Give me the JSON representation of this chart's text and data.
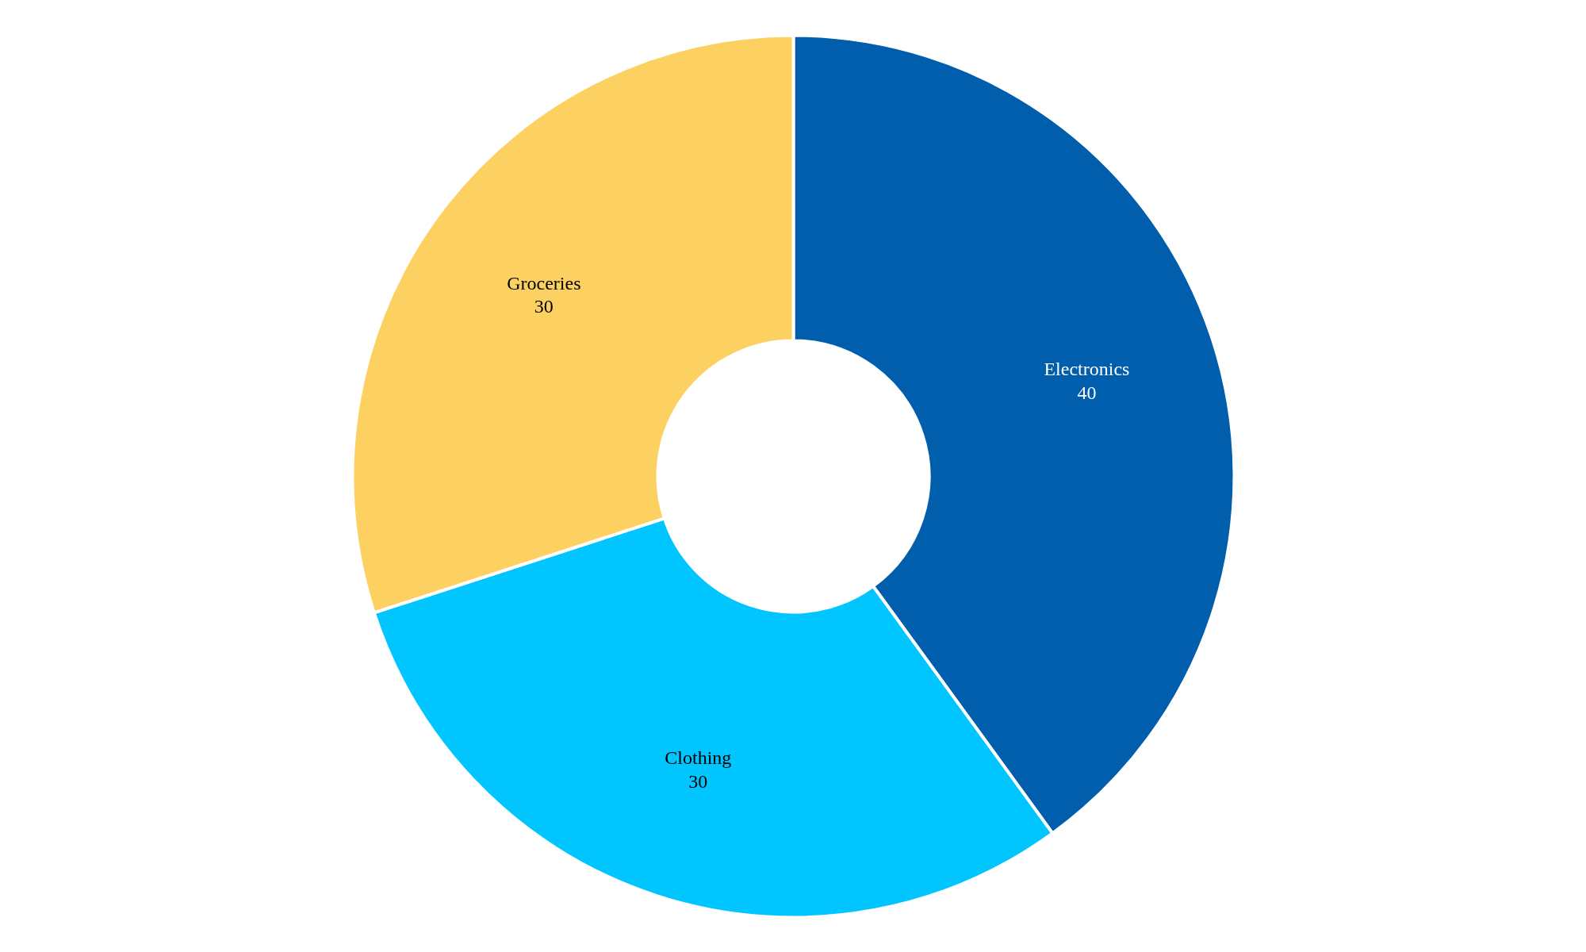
{
  "chart_data": {
    "type": "donut",
    "categories": [
      "Electronics",
      "Clothing",
      "Groceries"
    ],
    "values": [
      40,
      30,
      30
    ],
    "colors": [
      "#005eac",
      "#00c5ff",
      "#fdd161"
    ],
    "data_labels": true
  }
}
